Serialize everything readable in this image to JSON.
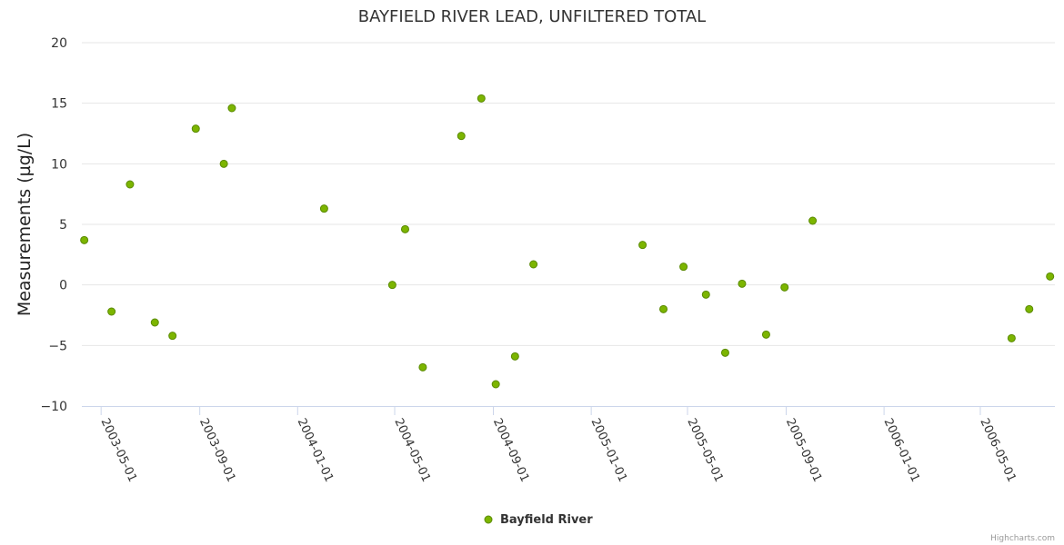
{
  "chart_data": {
    "type": "scatter",
    "title": "BAYFIELD RIVER LEAD, UNFILTERED TOTAL",
    "xlabel": "",
    "ylabel": "Measurements (µg/L)",
    "ylim": [
      -10,
      20
    ],
    "yticks": [
      "−10",
      "−5",
      "0",
      "5",
      "10",
      "15",
      "20"
    ],
    "xticks": [
      "2003-05-01",
      "2003-09-01",
      "2004-01-01",
      "2004-05-01",
      "2004-09-01",
      "2005-01-01",
      "2005-05-01",
      "2005-09-01",
      "2006-01-01",
      "2006-05-01"
    ],
    "xlim": [
      "2003-04-07",
      "2006-08-02"
    ],
    "grid": true,
    "legend_position": "bottom-center",
    "color": "#7cb500",
    "series": [
      {
        "name": "Bayfield River",
        "points": [
          {
            "x": "2003-04-10",
            "y": 3.7
          },
          {
            "x": "2003-05-14",
            "y": -2.2
          },
          {
            "x": "2003-06-06",
            "y": 8.3
          },
          {
            "x": "2003-07-07",
            "y": -3.1
          },
          {
            "x": "2003-07-29",
            "y": -4.2
          },
          {
            "x": "2003-08-27",
            "y": 12.9
          },
          {
            "x": "2003-10-01",
            "y": 10.0
          },
          {
            "x": "2003-10-11",
            "y": 14.6
          },
          {
            "x": "2004-02-03",
            "y": 6.3
          },
          {
            "x": "2004-04-28",
            "y": 0.0
          },
          {
            "x": "2004-05-14",
            "y": 4.6
          },
          {
            "x": "2004-06-05",
            "y": -6.8
          },
          {
            "x": "2004-07-23",
            "y": 12.3
          },
          {
            "x": "2004-08-17",
            "y": 15.4
          },
          {
            "x": "2004-09-04",
            "y": -8.2
          },
          {
            "x": "2004-09-28",
            "y": -5.9
          },
          {
            "x": "2004-10-21",
            "y": 1.7
          },
          {
            "x": "2005-03-06",
            "y": 3.3
          },
          {
            "x": "2005-04-01",
            "y": -2.0
          },
          {
            "x": "2005-04-26",
            "y": 1.5
          },
          {
            "x": "2005-05-24",
            "y": -0.8
          },
          {
            "x": "2005-06-17",
            "y": -5.6
          },
          {
            "x": "2005-07-08",
            "y": 0.1
          },
          {
            "x": "2005-08-07",
            "y": -4.1
          },
          {
            "x": "2005-08-30",
            "y": -0.2
          },
          {
            "x": "2005-10-04",
            "y": 5.3
          },
          {
            "x": "2006-06-09",
            "y": -4.4
          },
          {
            "x": "2006-07-01",
            "y": -2.0
          },
          {
            "x": "2006-07-27",
            "y": 0.7
          }
        ]
      }
    ]
  },
  "credit": "Highcharts.com"
}
